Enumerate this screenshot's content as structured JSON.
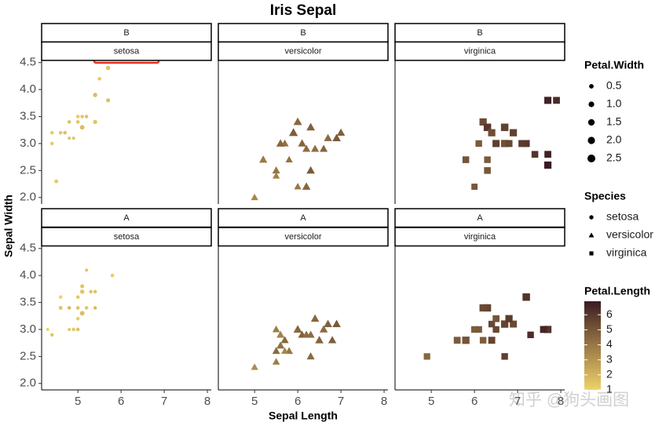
{
  "chart_data": {
    "type": "scatter",
    "title": "Iris Sepal",
    "x_label": "Sepal Length",
    "y_label": "Sepal Width",
    "xlim": [
      4.16,
      8.09
    ],
    "ylim": [
      1.88,
      4.54
    ],
    "xticks": [
      5,
      6,
      7,
      8
    ],
    "yticks": [
      {
        "value": 2,
        "label": "2.0"
      },
      {
        "value": 2.5,
        "label": "2.5"
      },
      {
        "value": 3,
        "label": "3.0"
      },
      {
        "value": 3.5,
        "label": "3.5"
      },
      {
        "value": 4,
        "label": "4.0"
      },
      {
        "value": 4.5,
        "label": "4.5"
      }
    ],
    "panels": [
      {
        "strip": [
          "B",
          "setosa"
        ],
        "x": [
          5.7,
          5.5,
          5.4,
          5.7,
          5.2,
          5.0,
          5.1,
          5.0,
          4.8,
          5.4,
          4.6,
          4.7,
          4.4,
          4.8,
          4.9,
          4.4,
          4.5,
          5.1
        ],
        "y": [
          4.4,
          4.2,
          3.9,
          3.8,
          3.5,
          3.5,
          3.5,
          3.4,
          3.4,
          3.4,
          3.2,
          3.2,
          3.2,
          3.1,
          3.1,
          3.0,
          2.3,
          3.3
        ],
        "petal_width": [
          0.4,
          0.2,
          0.4,
          0.3,
          0.2,
          0.2,
          0.2,
          0.2,
          0.2,
          0.4,
          0.2,
          0.2,
          0.2,
          0.1,
          0.1,
          0.2,
          0.3,
          0.5
        ],
        "petal_length": [
          1.5,
          1.4,
          1.7,
          1.7,
          1.5,
          1.3,
          1.4,
          1.5,
          1.6,
          1.5,
          1.4,
          1.6,
          1.3,
          1.6,
          1.5,
          1.3,
          1.3,
          1.7
        ]
      },
      {
        "strip": [
          "B",
          "versicolor"
        ],
        "x": [
          6.0,
          5.9,
          6.3,
          6.7,
          6.9,
          7.0,
          6.1,
          5.7,
          5.8,
          6.2,
          5.6,
          6.4,
          5.5,
          5.0,
          5.5,
          6.3,
          6.2,
          6.0,
          5.2,
          6.6
        ],
        "y": [
          3.4,
          3.2,
          3.3,
          3.1,
          3.1,
          3.2,
          3.0,
          3.0,
          2.7,
          2.9,
          3.0,
          2.9,
          2.4,
          2.0,
          2.5,
          2.5,
          2.2,
          2.2,
          2.7,
          2.9
        ],
        "petal_width": [
          1.6,
          1.8,
          1.6,
          1.4,
          1.5,
          1.4,
          1.4,
          1.2,
          1.0,
          1.3,
          1.5,
          1.3,
          1.0,
          1.0,
          1.3,
          1.5,
          1.5,
          1.0,
          1.4,
          1.3
        ],
        "petal_length": [
          4.5,
          4.8,
          4.7,
          4.4,
          4.9,
          4.7,
          4.6,
          4.2,
          4.1,
          4.3,
          4.5,
          4.3,
          3.7,
          3.5,
          4.0,
          4.9,
          4.5,
          4.0,
          3.9,
          4.6
        ]
      },
      {
        "strip": [
          "B",
          "virginica"
        ],
        "x": [
          7.7,
          7.9,
          6.2,
          6.3,
          6.7,
          6.4,
          6.9,
          6.5,
          6.7,
          6.8,
          7.2,
          7.1,
          6.1,
          7.4,
          5.8,
          7.7,
          7.7,
          6.0,
          6.3,
          6.3
        ],
        "y": [
          3.8,
          3.8,
          3.4,
          3.3,
          3.3,
          3.2,
          3.2,
          3.0,
          3.0,
          3.0,
          3.0,
          3.0,
          3.0,
          2.8,
          2.7,
          2.6,
          2.8,
          2.2,
          2.5,
          2.7
        ],
        "petal_width": [
          2.2,
          2.0,
          2.3,
          2.5,
          2.5,
          2.3,
          2.3,
          2.2,
          2.3,
          2.1,
          2.1,
          2.1,
          1.8,
          1.9,
          1.9,
          2.3,
          2.0,
          1.5,
          1.9,
          1.8
        ],
        "petal_length": [
          6.7,
          6.4,
          5.4,
          6.0,
          5.7,
          5.3,
          5.7,
          5.8,
          5.2,
          5.5,
          6.0,
          5.9,
          4.9,
          6.1,
          5.1,
          6.9,
          6.7,
          5.0,
          5.0,
          4.9
        ]
      },
      {
        "strip": [
          "A",
          "setosa"
        ],
        "x": [
          5.8,
          5.2,
          5.1,
          4.6,
          5.4,
          5.0,
          5.1,
          5.0,
          5.3,
          4.6,
          4.8,
          5.0,
          4.4,
          4.3,
          4.9,
          5.0,
          4.8,
          5.1,
          5.2,
          5.4
        ],
        "y": [
          4.0,
          4.1,
          3.8,
          3.6,
          3.7,
          3.6,
          3.7,
          3.4,
          3.7,
          3.4,
          3.4,
          3.2,
          2.9,
          3.0,
          3.0,
          3.0,
          3.0,
          3.3,
          3.4,
          3.4
        ],
        "petal_width": [
          0.2,
          0.1,
          0.3,
          0.2,
          0.2,
          0.2,
          0.4,
          0.2,
          0.2,
          0.3,
          0.2,
          0.2,
          0.2,
          0.1,
          0.2,
          0.2,
          0.1,
          0.5,
          0.2,
          0.2
        ],
        "petal_length": [
          1.2,
          1.5,
          1.5,
          1.0,
          1.5,
          1.4,
          1.5,
          1.6,
          1.5,
          1.4,
          1.9,
          1.2,
          1.4,
          1.1,
          1.4,
          1.6,
          1.4,
          1.7,
          1.4,
          1.7
        ]
      },
      {
        "strip": [
          "A",
          "versicolor"
        ],
        "x": [
          6.4,
          6.3,
          6.7,
          6.9,
          5.5,
          6.0,
          6.5,
          6.1,
          5.7,
          5.6,
          6.3,
          5.0,
          5.5,
          5.5,
          5.8,
          6.2,
          6.6,
          5.6,
          5.7,
          6.8
        ],
        "y": [
          3.2,
          2.9,
          3.1,
          3.1,
          3.0,
          3.0,
          2.8,
          2.9,
          2.8,
          2.9,
          2.5,
          2.3,
          2.4,
          2.6,
          2.6,
          2.9,
          3.0,
          2.7,
          2.6,
          2.8
        ],
        "petal_width": [
          1.5,
          1.3,
          1.5,
          1.5,
          1.1,
          1.6,
          1.5,
          1.3,
          1.3,
          1.3,
          1.3,
          1.0,
          1.1,
          1.2,
          1.2,
          1.3,
          1.4,
          1.3,
          1.0,
          1.4
        ],
        "petal_length": [
          4.5,
          4.3,
          4.7,
          4.9,
          3.8,
          4.5,
          4.6,
          4.7,
          4.5,
          3.6,
          4.4,
          3.3,
          3.8,
          4.4,
          4.0,
          4.3,
          4.4,
          4.2,
          3.5,
          4.8
        ]
      },
      {
        "strip": [
          "A",
          "virginica"
        ],
        "x": [
          6.3,
          6.2,
          7.2,
          6.4,
          6.5,
          6.9,
          6.7,
          6.8,
          6.0,
          6.1,
          7.7,
          7.6,
          7.3,
          6.5,
          5.8,
          6.4,
          5.6,
          6.2,
          4.9,
          6.7
        ],
        "y": [
          3.4,
          3.4,
          3.6,
          3.1,
          3.0,
          3.1,
          3.1,
          3.2,
          3.0,
          3.0,
          3.0,
          3.0,
          2.9,
          3.2,
          2.8,
          2.8,
          2.8,
          2.8,
          2.5,
          2.5
        ],
        "petal_width": [
          2.4,
          2.3,
          2.5,
          1.8,
          1.8,
          2.1,
          2.4,
          2.3,
          1.8,
          1.8,
          2.3,
          2.1,
          1.8,
          2.0,
          2.4,
          2.1,
          2.0,
          1.8,
          1.7,
          1.8
        ],
        "petal_length": [
          5.6,
          5.4,
          6.1,
          5.5,
          5.5,
          5.4,
          5.6,
          5.9,
          4.8,
          4.9,
          6.1,
          6.6,
          6.3,
          5.1,
          5.1,
          5.6,
          4.9,
          4.8,
          4.5,
          5.8
        ]
      }
    ],
    "size_legend": {
      "title": "Petal.Width",
      "values": [
        0.5,
        {
          "value": 1,
          "label": "1.0"
        },
        1.5,
        {
          "value": 2,
          "label": "2.0"
        },
        2.5
      ]
    },
    "shape_legend": {
      "title": "Species",
      "items": [
        {
          "name": "setosa",
          "shape": "circle"
        },
        {
          "name": "versicolor",
          "shape": "triangle"
        },
        {
          "name": "virginica",
          "shape": "square"
        }
      ]
    },
    "color_legend": {
      "title": "Petal.Length",
      "lim": [
        1,
        6.9
      ],
      "ticks": [
        1,
        2,
        3,
        4,
        5,
        6
      ],
      "colors": [
        "#efd36a",
        "#9a7845",
        "#3a1b22"
      ]
    },
    "watermark": "知乎 @狗头画图"
  }
}
